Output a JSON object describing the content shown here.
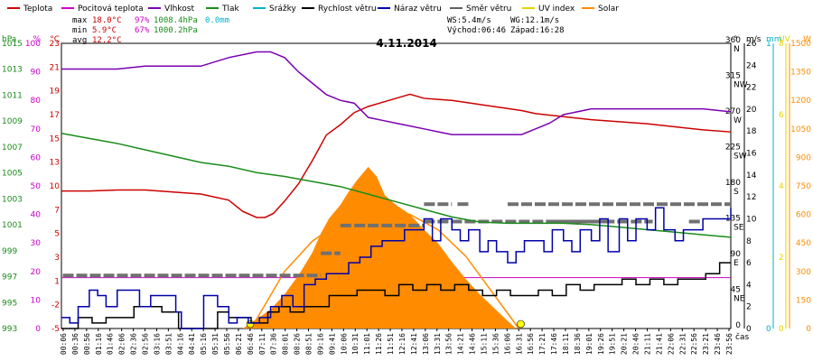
{
  "chart_data": {
    "type": "line",
    "title": "4.11.2014",
    "legend": [
      {
        "label": "Teplota",
        "color": "#cc0000"
      },
      {
        "label": "Pocitová teplota",
        "color": "#cc00cc"
      },
      {
        "label": "Vlhkost",
        "color": "#7a00b3"
      },
      {
        "label": "Tlak",
        "color": "#1a8c1a"
      },
      {
        "label": "Srážky",
        "color": "#00b3cc"
      },
      {
        "label": "Rychlost větru",
        "color": "#000000"
      },
      {
        "label": "Náraz větru",
        "color": "#0000aa"
      },
      {
        "label": "Směr větru",
        "color": "#606060"
      },
      {
        "label": "UV index",
        "color": "#e6d200"
      },
      {
        "label": "Solar",
        "color": "#ff8c00"
      }
    ],
    "stats": {
      "max_label": "max",
      "min_label": "min",
      "avg_label": "avg",
      "max_temp": "18.0°C",
      "max_hum": "97%",
      "max_press": "1008.4hPa",
      "max_rain": "0.0mm",
      "min_temp": "5.9°C",
      "min_hum": "67%",
      "min_press": "1000.2hPa",
      "avg_temp": "12.2°C",
      "ws": "WS:5.4m/s",
      "wg": "WG:12.1m/s",
      "sunrise": "Východ:06:46",
      "sunset": "Západ:16:28"
    },
    "axes": {
      "hpa": {
        "unit": "hPa",
        "color": "#1a8c1a",
        "ticks": [
          993,
          995,
          997,
          999,
          1001,
          1003,
          1005,
          1007,
          1009,
          1011,
          1013,
          1015
        ]
      },
      "pct": {
        "unit": "%",
        "color": "#cc00cc",
        "ticks": [
          0,
          10,
          20,
          30,
          40,
          50,
          60,
          70,
          80,
          90,
          100
        ]
      },
      "temp": {
        "unit": "°C",
        "color": "#cc0000",
        "ticks": [
          -5,
          -2,
          1,
          3,
          5,
          7,
          10,
          13,
          15,
          17,
          19,
          21,
          23
        ]
      },
      "dir": {
        "unit": "°",
        "ticks": [
          {
            "v": "0",
            "d": ""
          },
          {
            "v": "45",
            "d": "NE"
          },
          {
            "v": "90",
            "d": "E"
          },
          {
            "v": "135",
            "d": "SE"
          },
          {
            "v": "180",
            "d": "S"
          },
          {
            "v": "225",
            "d": "SW"
          },
          {
            "v": "270",
            "d": "W"
          },
          {
            "v": "315",
            "d": "NW"
          },
          {
            "v": "360",
            "d": "N"
          }
        ]
      },
      "ms": {
        "unit": "m/s",
        "ticks": [
          0,
          2,
          4,
          6,
          8,
          10,
          12,
          14,
          16,
          18,
          20,
          22,
          24,
          26
        ]
      },
      "mm": {
        "unit": "mm",
        "color": "#00b3cc",
        "ticks": [
          0,
          1
        ]
      },
      "uv": {
        "unit": "UV",
        "color": "#e6d200",
        "ticks": [
          0,
          2,
          4,
          6,
          8
        ]
      },
      "w": {
        "unit": "W",
        "color": "#ff8c00",
        "ticks": [
          0,
          150,
          300,
          450,
          600,
          750,
          900,
          1050,
          1200,
          1350,
          1500
        ]
      },
      "time_label": "čas"
    },
    "x_ticks": [
      "00:06",
      "00:36",
      "00:56",
      "01:16",
      "01:46",
      "02:06",
      "02:36",
      "02:56",
      "03:16",
      "03:51",
      "04:16",
      "04:41",
      "05:16",
      "05:31",
      "05:56",
      "06:21",
      "06:46",
      "07:11",
      "07:36",
      "08:01",
      "08:26",
      "08:51",
      "09:16",
      "09:41",
      "10:06",
      "10:31",
      "11:01",
      "11:26",
      "11:51",
      "12:16",
      "12:41",
      "13:06",
      "13:31",
      "13:56",
      "14:21",
      "14:46",
      "15:11",
      "15:36",
      "16:06",
      "16:31",
      "16:56",
      "17:21",
      "17:46",
      "18:11",
      "18:36",
      "19:01",
      "19:26",
      "19:51",
      "20:21",
      "20:46",
      "21:11",
      "21:41",
      "22:06",
      "22:31",
      "22:56",
      "23:21",
      "23:46",
      "23:56"
    ],
    "x_range_hours": [
      0,
      24
    ],
    "series": [
      {
        "name": "Teplota",
        "axis": "temp",
        "color": "#cc0000",
        "x": [
          0,
          1,
          2,
          3,
          4,
          5,
          6,
          6.5,
          7,
          7.3,
          7.6,
          8,
          8.5,
          9,
          9.5,
          10,
          10.5,
          11,
          11.5,
          12,
          12.5,
          13,
          13.5,
          14,
          14.5,
          15,
          15.5,
          16,
          16.5,
          17,
          18,
          19,
          20,
          21,
          22,
          23,
          24
        ],
        "y": [
          8.5,
          8.5,
          8.6,
          8.6,
          8.4,
          8.2,
          7.6,
          6.5,
          5.9,
          5.9,
          6.3,
          7.5,
          9.2,
          11.5,
          14.0,
          15.0,
          16.2,
          16.8,
          17.2,
          17.6,
          18.0,
          17.6,
          17.5,
          17.4,
          17.2,
          17.0,
          16.8,
          16.6,
          16.4,
          16.1,
          15.8,
          15.5,
          15.3,
          15.1,
          14.8,
          14.5,
          14.3
        ]
      },
      {
        "name": "Vlhkost",
        "axis": "pct",
        "color": "#7a00b3",
        "x": [
          0,
          1,
          2,
          3,
          4,
          5,
          6,
          7,
          7.5,
          8,
          8.5,
          9,
          9.5,
          10,
          10.5,
          11,
          11.5,
          12,
          12.5,
          13,
          13.5,
          14,
          14.5,
          15,
          15.5,
          16,
          16.5,
          17,
          17.5,
          18,
          19,
          20,
          21,
          22,
          23,
          24
        ],
        "y": [
          91,
          91,
          91,
          92,
          92,
          92,
          95,
          97,
          97,
          95,
          90,
          86,
          82,
          80,
          79,
          74,
          73,
          72,
          71,
          70,
          69,
          68,
          68,
          68,
          68,
          68,
          68,
          70,
          72,
          75,
          77,
          77,
          77,
          77,
          77,
          76
        ]
      },
      {
        "name": "Tlak",
        "axis": "hpa",
        "color": "#1a8c1a",
        "x": [
          0,
          1,
          2,
          3,
          4,
          5,
          6,
          7,
          8,
          9,
          10,
          11,
          12,
          13,
          14,
          15,
          16,
          17,
          18,
          19,
          20,
          21,
          22,
          23,
          24
        ],
        "y": [
          1008.4,
          1008.0,
          1007.6,
          1007.1,
          1006.6,
          1006.1,
          1005.8,
          1005.3,
          1005.0,
          1004.6,
          1004.2,
          1003.6,
          1003.0,
          1002.4,
          1001.8,
          1001.4,
          1001.3,
          1001.3,
          1001.3,
          1001.2,
          1001.0,
          1000.8,
          1000.6,
          1000.4,
          1000.2
        ]
      },
      {
        "name": "Rychlost větru",
        "axis": "ms",
        "color": "#000000",
        "x": [
          0,
          0.6,
          1.1,
          1.6,
          2.1,
          2.6,
          3.1,
          3.6,
          4.2,
          5.2,
          5.6,
          6.0,
          6.4,
          6.8,
          7.4,
          7.8,
          8.2,
          8.7,
          9.2,
          9.6,
          10.0,
          10.6,
          11.2,
          11.6,
          12.1,
          12.6,
          13.1,
          13.6,
          14.1,
          14.6,
          15.1,
          15.6,
          16.1,
          16.6,
          17.1,
          17.6,
          18.1,
          18.6,
          19.1,
          19.6,
          20.1,
          20.6,
          21.1,
          21.6,
          22.1,
          22.6,
          23.1,
          23.6,
          24
        ],
        "y": [
          0,
          1,
          0.5,
          1,
          1,
          2,
          2,
          1.5,
          0,
          0,
          1.5,
          1,
          1,
          0.5,
          1.5,
          2,
          1.5,
          2,
          2,
          3,
          3,
          3.5,
          3.5,
          3,
          4,
          3.5,
          4,
          3.5,
          4,
          3.5,
          3,
          3.5,
          3,
          3,
          3.5,
          3,
          4,
          3.5,
          4,
          4,
          4.5,
          4,
          4.5,
          4,
          4.5,
          4.5,
          5,
          6,
          6
        ]
      },
      {
        "name": "Náraz větru",
        "axis": "ms",
        "color": "#0000aa",
        "x": [
          0,
          0.3,
          0.6,
          1,
          1.3,
          1.6,
          2,
          2.4,
          2.8,
          3.2,
          3.6,
          4.1,
          4.3,
          5.1,
          5.3,
          5.6,
          6.0,
          6.3,
          6.7,
          7.1,
          7.5,
          7.9,
          8.3,
          8.7,
          9.1,
          9.5,
          9.9,
          10.3,
          10.7,
          11.1,
          11.5,
          11.9,
          12.3,
          12.7,
          13.0,
          13.3,
          13.6,
          14.0,
          14.3,
          14.6,
          15.0,
          15.3,
          15.6,
          16.0,
          16.3,
          16.6,
          17.0,
          17.3,
          17.6,
          18.0,
          18.3,
          18.6,
          19.0,
          19.3,
          19.6,
          20.0,
          20.3,
          20.6,
          21.0,
          21.3,
          21.6,
          22.0,
          22.3,
          22.6,
          23.0,
          23.3,
          23.6,
          24
        ],
        "y": [
          1,
          0.5,
          2,
          3.5,
          3,
          2,
          3.5,
          3.5,
          2,
          3,
          3,
          1.5,
          0,
          3,
          3,
          2,
          0.5,
          1,
          0.5,
          1,
          2,
          3,
          2,
          4,
          4.5,
          5,
          5,
          6,
          6.5,
          7.5,
          8,
          8,
          9,
          9,
          10,
          8,
          10,
          9,
          8,
          9,
          7,
          8,
          7,
          6,
          7,
          8,
          8,
          7,
          9,
          8,
          7,
          9,
          8,
          10,
          7,
          10,
          8,
          10,
          9,
          11,
          9,
          8,
          9,
          9,
          10,
          10,
          10,
          11
        ]
      },
      {
        "name": "Solar",
        "axis": "w",
        "color": "#ff8c00",
        "kind": "area",
        "x": [
          6.5,
          7,
          7.5,
          8,
          8.5,
          9,
          9.3,
          9.6,
          10,
          10.3,
          10.6,
          11,
          11.3,
          11.6,
          12,
          12.5,
          13,
          13.5,
          14,
          14.5,
          15,
          15.5,
          16,
          16.3
        ],
        "y": [
          0,
          50,
          100,
          180,
          280,
          400,
          500,
          580,
          650,
          720,
          780,
          850,
          800,
          700,
          650,
          600,
          520,
          450,
          350,
          260,
          180,
          110,
          40,
          0
        ]
      }
    ],
    "reference_lines": [
      {
        "name": "UV curve",
        "axis": "w",
        "color": "#ff8c00",
        "x": [
          6.8,
          8,
          9,
          10,
          11,
          11.8,
          12.5,
          13.5,
          14.5,
          15.5,
          16.4
        ],
        "y": [
          0,
          300,
          460,
          560,
          600,
          610,
          600,
          520,
          380,
          180,
          0
        ]
      }
    ],
    "wind_dir_bars": [
      {
        "x0": 0.05,
        "x1": 9.3,
        "y": 67
      },
      {
        "x0": 9.3,
        "x1": 10.0,
        "y": 95
      },
      {
        "x0": 10.0,
        "x1": 10.4,
        "y": 130
      },
      {
        "x0": 10.5,
        "x1": 13.0,
        "y": 130
      },
      {
        "x0": 13.0,
        "x1": 19.5,
        "y": 135
      },
      {
        "x0": 13.0,
        "x1": 14.0,
        "y": 157
      },
      {
        "x0": 14.2,
        "x1": 14.6,
        "y": 157
      },
      {
        "x0": 16.0,
        "x1": 24,
        "y": 157
      },
      {
        "x0": 17.5,
        "x1": 21.2,
        "y": 135
      },
      {
        "x0": 22.5,
        "x1": 23.0,
        "y": 135
      }
    ]
  }
}
